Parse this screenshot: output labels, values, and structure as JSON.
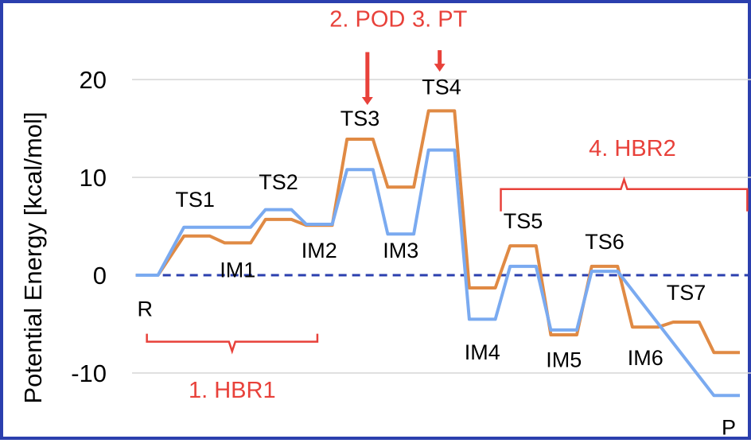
{
  "chart_data": {
    "type": "line",
    "ylabel": "Potential Energy [kcal/mol]",
    "ylim": [
      -17.5,
      20.5
    ],
    "yticks": [
      20,
      10,
      0,
      -10
    ],
    "grid": "horizontal",
    "colors": {
      "series_orange": "#e08a44",
      "series_blue": "#7aaaf0",
      "zero_line": "#2b3fae",
      "annotation": "#e8413a",
      "frame": "#2b3fae"
    },
    "series": [
      {
        "points": [
          {
            "x": 0,
            "y": 0
          },
          {
            "x": 0.6,
            "y": 0
          },
          {
            "x": 1.3,
            "y": 4.0
          },
          {
            "x": 2.0,
            "y": 4.0
          },
          {
            "x": 2.4,
            "y": 3.3
          },
          {
            "x": 3.1,
            "y": 3.3
          },
          {
            "x": 3.5,
            "y": 5.7
          },
          {
            "x": 4.2,
            "y": 5.7
          },
          {
            "x": 4.6,
            "y": 5.1
          },
          {
            "x": 5.3,
            "y": 5.1
          },
          {
            "x": 5.7,
            "y": 13.9
          },
          {
            "x": 6.4,
            "y": 13.9
          },
          {
            "x": 6.8,
            "y": 9.0
          },
          {
            "x": 7.5,
            "y": 9.0
          },
          {
            "x": 7.9,
            "y": 16.8
          },
          {
            "x": 8.6,
            "y": 16.8
          },
          {
            "x": 9.0,
            "y": -1.3
          },
          {
            "x": 9.7,
            "y": -1.3
          },
          {
            "x": 10.1,
            "y": 3.0
          },
          {
            "x": 10.8,
            "y": 3.0
          },
          {
            "x": 11.2,
            "y": -6.1
          },
          {
            "x": 11.9,
            "y": -6.1
          },
          {
            "x": 12.3,
            "y": 0.9
          },
          {
            "x": 13.0,
            "y": 0.9
          },
          {
            "x": 13.4,
            "y": -5.3
          },
          {
            "x": 14.1,
            "y": -5.3
          },
          {
            "x": 14.5,
            "y": -4.8
          },
          {
            "x": 15.2,
            "y": -4.8
          },
          {
            "x": 15.6,
            "y": -7.9
          },
          {
            "x": 16.3,
            "y": -7.9
          }
        ]
      },
      {
        "points": [
          {
            "x": 0,
            "y": 0
          },
          {
            "x": 0.6,
            "y": 0
          },
          {
            "x": 1.3,
            "y": 4.9
          },
          {
            "x": 2.0,
            "y": 4.9
          },
          {
            "x": 3.1,
            "y": 4.9
          },
          {
            "x": 3.5,
            "y": 6.7
          },
          {
            "x": 4.2,
            "y": 6.7
          },
          {
            "x": 4.6,
            "y": 5.2
          },
          {
            "x": 5.3,
            "y": 5.2
          },
          {
            "x": 5.7,
            "y": 10.8
          },
          {
            "x": 6.4,
            "y": 10.8
          },
          {
            "x": 6.8,
            "y": 4.2
          },
          {
            "x": 7.5,
            "y": 4.2
          },
          {
            "x": 7.9,
            "y": 12.8
          },
          {
            "x": 8.6,
            "y": 12.8
          },
          {
            "x": 9.0,
            "y": -4.5
          },
          {
            "x": 9.7,
            "y": -4.5
          },
          {
            "x": 10.1,
            "y": 0.9
          },
          {
            "x": 10.8,
            "y": 0.9
          },
          {
            "x": 11.2,
            "y": -5.6
          },
          {
            "x": 11.9,
            "y": -5.6
          },
          {
            "x": 12.3,
            "y": 0.4
          },
          {
            "x": 13.0,
            "y": 0.4
          },
          {
            "x": 15.6,
            "y": -12.3
          },
          {
            "x": 16.3,
            "y": -12.3
          }
        ]
      }
    ],
    "point_labels": [
      {
        "text": "R",
        "x": 0.25,
        "y": -4.2
      },
      {
        "text": "TS1",
        "x": 1.6,
        "y": 7.0
      },
      {
        "text": "IM1",
        "x": 2.75,
        "y": -0.2
      },
      {
        "text": "TS2",
        "x": 3.85,
        "y": 8.8
      },
      {
        "text": "IM2",
        "x": 4.95,
        "y": 1.8
      },
      {
        "text": "TS3",
        "x": 6.05,
        "y": 15.3
      },
      {
        "text": "IM3",
        "x": 7.15,
        "y": 1.8
      },
      {
        "text": "TS4",
        "x": 8.25,
        "y": 18.5
      },
      {
        "text": "IM4",
        "x": 9.35,
        "y": -8.6
      },
      {
        "text": "TS5",
        "x": 10.45,
        "y": 4.8
      },
      {
        "text": "IM5",
        "x": 11.55,
        "y": -9.4
      },
      {
        "text": "TS6",
        "x": 12.65,
        "y": 2.7
      },
      {
        "text": "IM6",
        "x": 13.75,
        "y": -9.2
      },
      {
        "text": "TS7",
        "x": 14.85,
        "y": -2.5
      },
      {
        "text": "P",
        "x": 16.0,
        "y": -16.3
      }
    ],
    "annotations": [
      {
        "text": "1. HBR1",
        "x": 2.6,
        "y": -12.5,
        "bracket": {
          "x1": 0.3,
          "x2": 4.9,
          "y": -6.8,
          "opens": "down"
        }
      },
      {
        "text": "2. POD",
        "x": 6.25,
        "y": 25.4,
        "arrow": {
          "x": 6.25,
          "y_from": 22.8,
          "y_to": 17.4
        }
      },
      {
        "text": "3. PT",
        "x": 8.2,
        "y": 25.4,
        "arrow": {
          "x": 8.2,
          "y_from": 23.0,
          "y_to": 20.8
        }
      },
      {
        "text": "4. HBR2",
        "x": 13.4,
        "y": 12.2,
        "bracket": {
          "x1": 9.85,
          "x2": 16.5,
          "y": 8.8,
          "opens": "up"
        }
      }
    ]
  }
}
